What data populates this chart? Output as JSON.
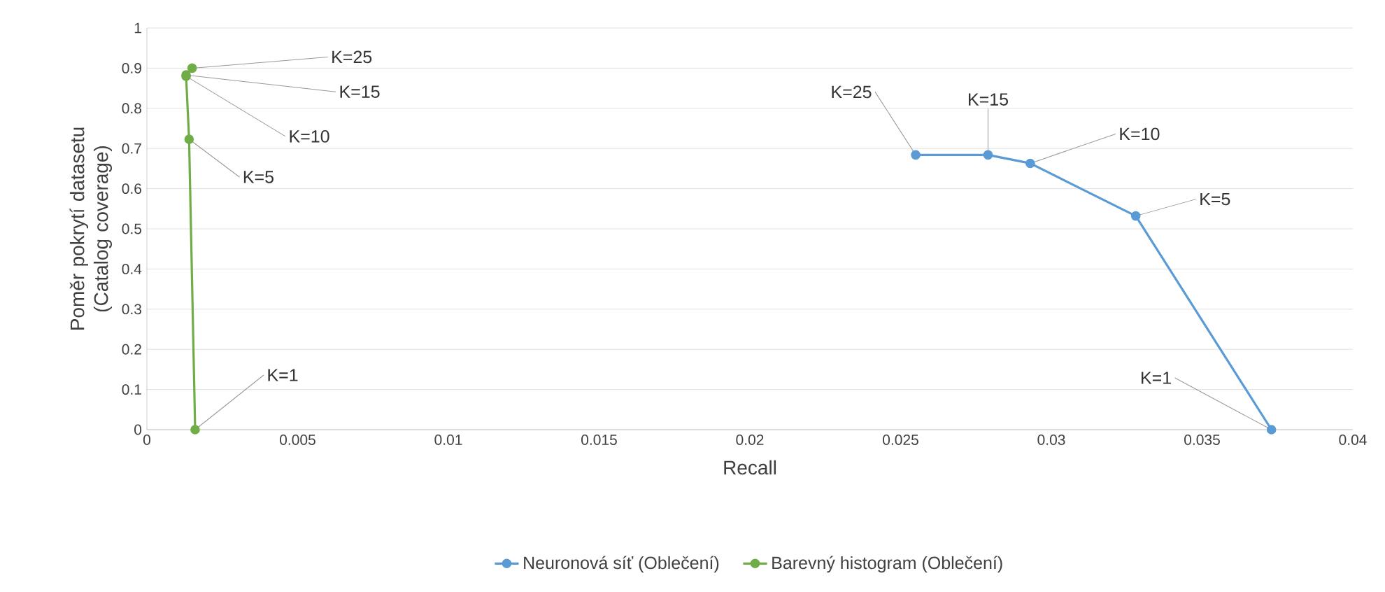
{
  "chart_data": {
    "type": "line",
    "xlabel": "Recall",
    "ylabel": "Poměr pokrytí datasetu (Catalog coverage)",
    "xlim": [
      0,
      0.04
    ],
    "xticks": [
      0,
      0.005,
      0.01,
      0.015,
      0.02,
      0.025,
      0.03,
      0.035,
      0.04
    ],
    "ylim": [
      0,
      1
    ],
    "yticks": [
      0,
      0.1,
      0.2,
      0.3,
      0.4,
      0.5,
      0.6,
      0.7,
      0.8,
      0.9,
      1
    ],
    "grid": "y",
    "legend": "bottom",
    "marker": "circle",
    "line_style": "solid",
    "series": [
      {
        "name": "Neuronová síť (Oblečení)",
        "color": "#5b9bd5",
        "x": [
          0.0373,
          0.0328,
          0.0293,
          0.0279,
          0.0255
        ],
        "values": [
          0,
          0.532,
          0.663,
          0.684,
          0.684
        ]
      },
      {
        "name": "Barevný histogram (Oblečení)",
        "color": "#70ad47",
        "x": [
          0.0016,
          0.0014,
          0.0013,
          0.0013,
          0.0015
        ],
        "values": [
          0,
          0.723,
          0.88,
          0.883,
          0.9
        ]
      }
    ],
    "annotations": [
      {
        "text": "K=1",
        "x": 0.0373,
        "y": 0
      },
      {
        "text": "K=5",
        "x": 0.0328,
        "y": 0.532
      },
      {
        "text": "K=10",
        "x": 0.0293,
        "y": 0.663
      },
      {
        "text": "K=15",
        "x": 0.0279,
        "y": 0.684
      },
      {
        "text": "K=25",
        "x": 0.0255,
        "y": 0.684
      },
      {
        "text": "K=1",
        "x": 0.0016,
        "y": 0
      },
      {
        "text": "K=5",
        "x": 0.0014,
        "y": 0.723
      },
      {
        "text": "K=10",
        "x": 0.0013,
        "y": 0.88
      },
      {
        "text": "K=15",
        "x": 0.0013,
        "y": 0.883
      },
      {
        "text": "K=25",
        "x": 0.0015,
        "y": 0.9
      }
    ]
  }
}
